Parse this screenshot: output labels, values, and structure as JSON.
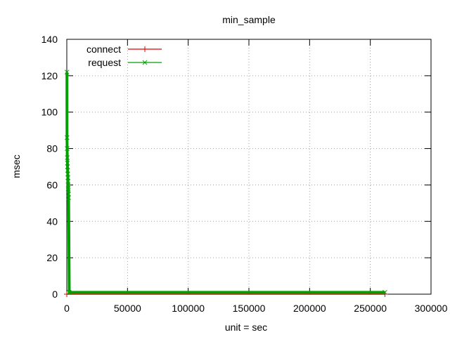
{
  "chart_data": {
    "type": "line",
    "title": "min_sample",
    "xlabel": "unit = sec",
    "ylabel": "msec",
    "xlim": [
      0,
      300000
    ],
    "ylim": [
      0,
      140
    ],
    "x_ticks": [
      "0",
      "50000",
      "100000",
      "150000",
      "200000",
      "250000",
      "300000"
    ],
    "y_ticks": [
      "0",
      "20",
      "40",
      "60",
      "80",
      "100",
      "120",
      "140"
    ],
    "grid": true,
    "legend_position": "top-left",
    "series": [
      {
        "name": "connect",
        "color": "#e00000",
        "marker": "plus",
        "x": [
          0,
          262000
        ],
        "y": [
          0,
          0
        ]
      },
      {
        "name": "request",
        "color": "#00a000",
        "marker": "x",
        "x": [
          100,
          200,
          300,
          400,
          500,
          600,
          700,
          800,
          900,
          1000,
          1100,
          1200,
          1300,
          1400,
          1500,
          2000,
          262000
        ],
        "y": [
          122,
          86,
          80,
          75,
          72,
          70,
          68,
          66,
          64,
          62,
          60,
          58,
          57,
          55,
          53,
          1,
          1
        ]
      }
    ]
  }
}
